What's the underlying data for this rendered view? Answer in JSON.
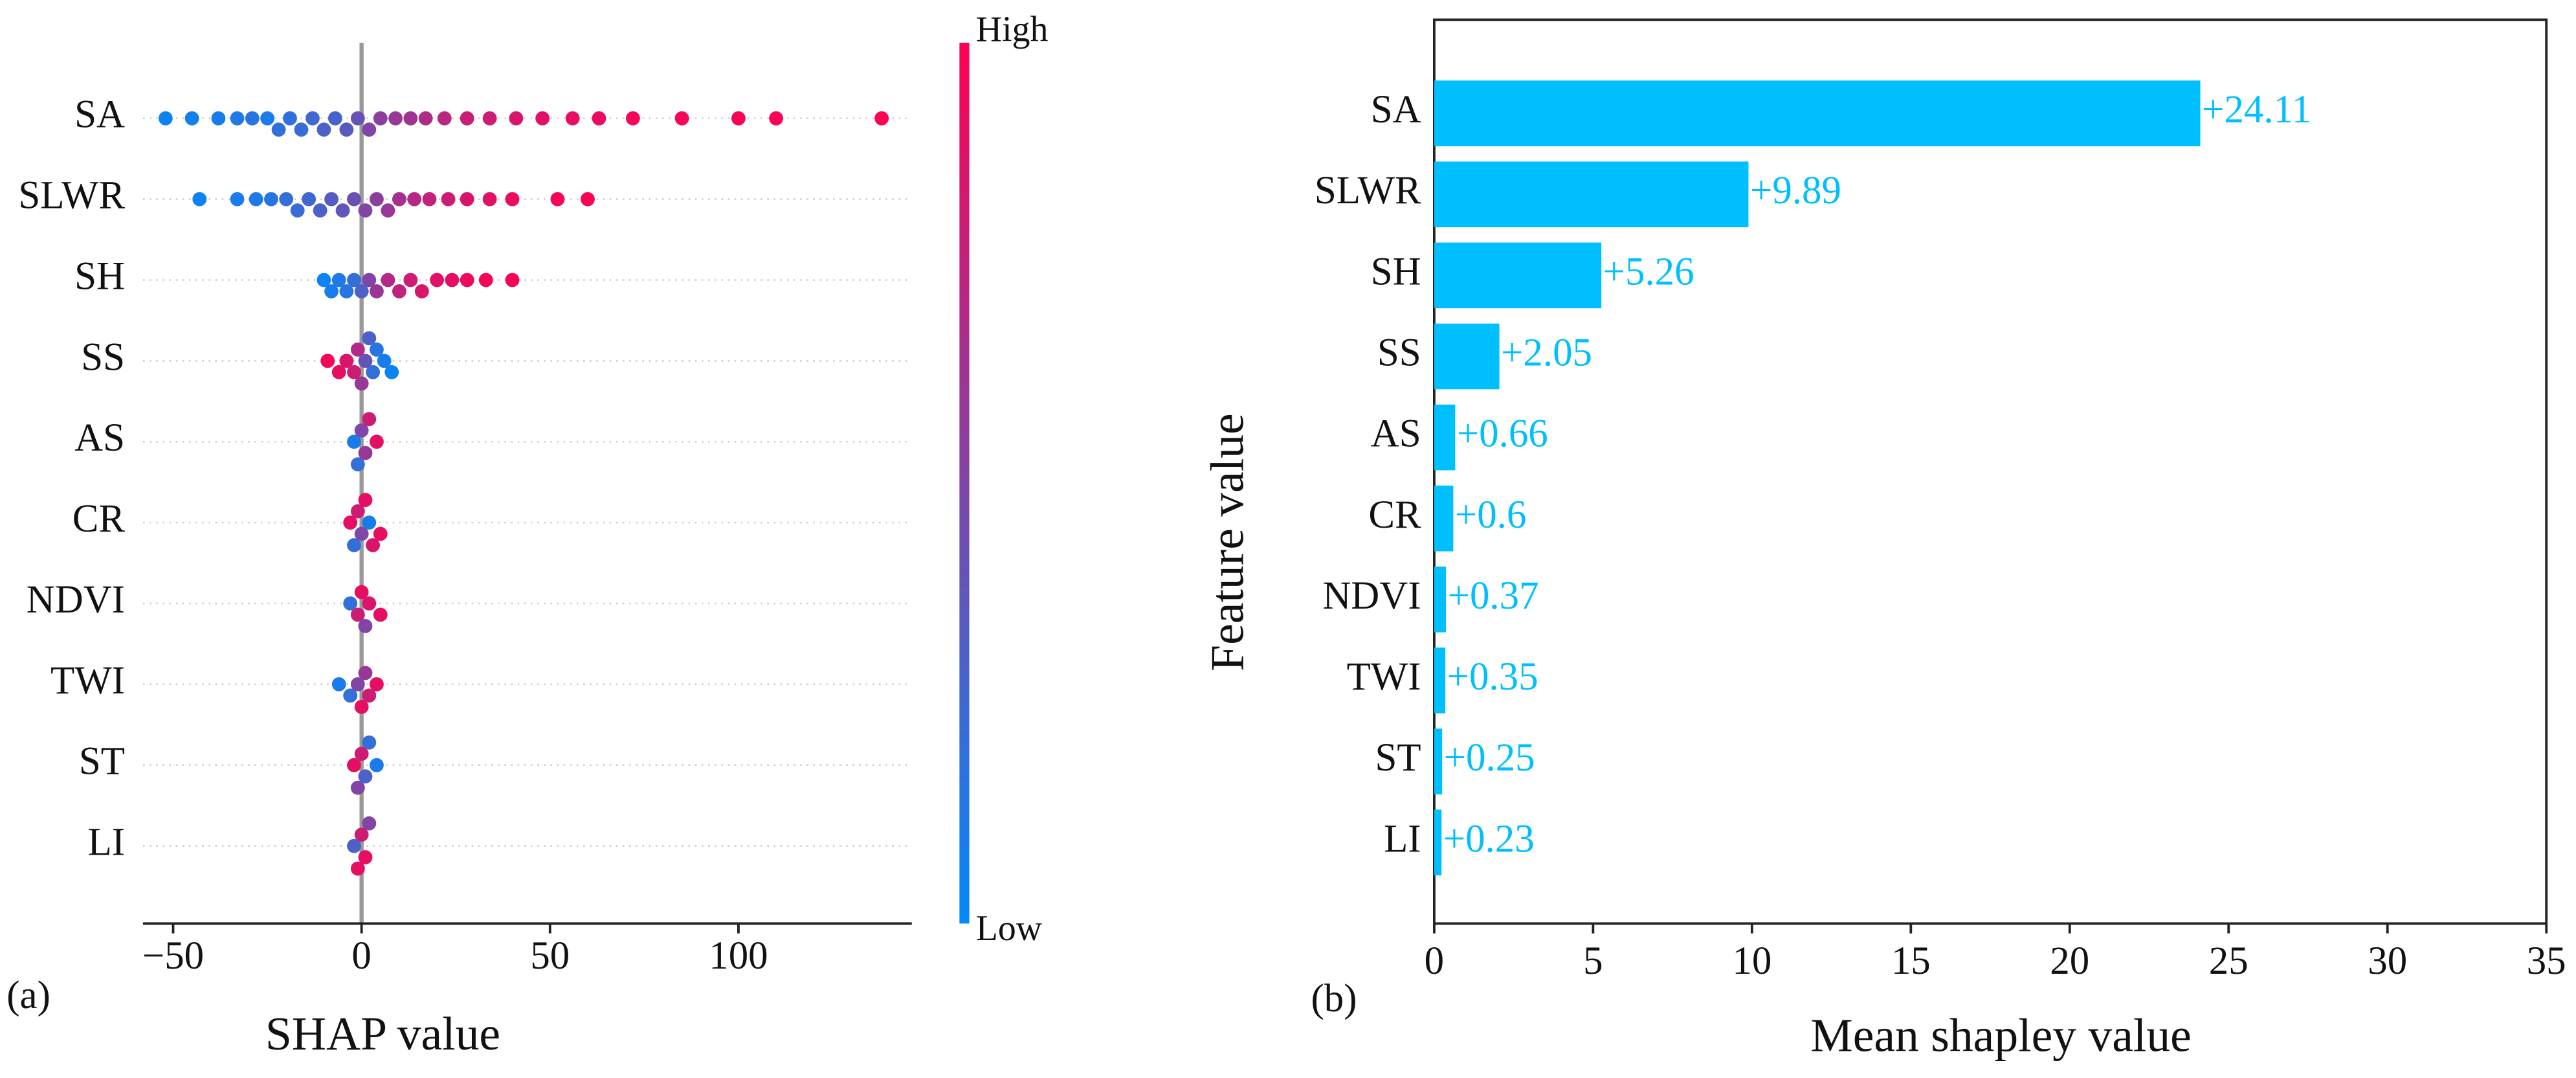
{
  "chart_data": [
    {
      "type": "beeswarm",
      "panel_label": "(a)",
      "xlabel": "SHAP value",
      "categories": [
        "SA",
        "SLWR",
        "SH",
        "SS",
        "AS",
        "CR",
        "NDVI",
        "TWI",
        "ST",
        "LI"
      ],
      "values": [
        [
          -52,
          -45,
          -38,
          -33,
          -29,
          -25,
          -22,
          -19,
          -16,
          -13,
          -10,
          -7,
          -4,
          -1,
          2,
          5,
          9,
          13,
          17,
          22,
          28,
          34,
          41,
          48,
          56,
          63,
          72,
          85,
          100,
          110,
          138
        ],
        [
          -43,
          -33,
          -28,
          -24,
          -20,
          -17,
          -14,
          -11,
          -8,
          -5,
          -2,
          1,
          4,
          7,
          10,
          14,
          18,
          23,
          28,
          34,
          40,
          52,
          60
        ],
        [
          -10,
          -8,
          -6,
          -4,
          -2,
          0,
          2,
          4,
          7,
          10,
          13,
          16,
          20,
          24,
          28,
          33,
          40
        ],
        [
          -9,
          -6,
          -4,
          -2,
          -1,
          0,
          1,
          2,
          3,
          4,
          6,
          8
        ],
        [
          -2,
          -1,
          0,
          1,
          2,
          4
        ],
        [
          -3,
          -2,
          -1,
          0,
          1,
          2,
          3,
          5
        ],
        [
          -3,
          -1,
          0,
          1,
          2,
          5
        ],
        [
          -6,
          -3,
          -1,
          0,
          1,
          2,
          4
        ],
        [
          -2,
          -1,
          0,
          1,
          2,
          4
        ],
        [
          -2,
          -1,
          0,
          1,
          2
        ]
      ],
      "feature_values": [
        [
          0.05,
          0.08,
          0.1,
          0.12,
          0.15,
          0.1,
          0.2,
          0.18,
          0.22,
          0.25,
          0.3,
          0.28,
          0.35,
          0.4,
          0.5,
          0.55,
          0.6,
          0.62,
          0.68,
          0.72,
          0.78,
          0.8,
          0.85,
          0.88,
          0.9,
          0.92,
          0.95,
          0.96,
          0.97,
          0.98,
          1
        ],
        [
          0.05,
          0.1,
          0.12,
          0.15,
          0.2,
          0.22,
          0.25,
          0.3,
          0.33,
          0.38,
          0.42,
          0.5,
          0.55,
          0.6,
          0.65,
          0.7,
          0.75,
          0.8,
          0.85,
          0.88,
          0.92,
          0.96,
          0.98
        ],
        [
          0.05,
          0.1,
          0.12,
          0.15,
          0.2,
          0.3,
          0.5,
          0.6,
          0.7,
          0.75,
          0.8,
          0.85,
          0.88,
          0.9,
          0.93,
          0.96,
          0.98
        ],
        [
          0.95,
          0.9,
          0.85,
          0.8,
          0.7,
          0.6,
          0.4,
          0.3,
          0.2,
          0.15,
          0.1,
          0.05
        ],
        [
          0.1,
          0.2,
          0.5,
          0.6,
          0.8,
          0.9
        ],
        [
          0.9,
          0.2,
          0.8,
          0.5,
          0.9,
          0.1,
          0.85,
          0.9
        ],
        [
          0.2,
          0.8,
          0.9,
          0.5,
          0.85,
          0.9
        ],
        [
          0.1,
          0.2,
          0.5,
          0.9,
          0.6,
          0.8,
          0.9
        ],
        [
          0.9,
          0.5,
          0.8,
          0.3,
          0.2,
          0.1
        ],
        [
          0.3,
          0.9,
          0.8,
          0.9,
          0.5
        ]
      ],
      "xlim": [
        -58,
        146
      ],
      "xticks": [
        {
          "value": -50,
          "label": "−50"
        },
        0,
        50,
        100
      ],
      "colorbar": {
        "high": "High",
        "low": "Low",
        "low_color": "#008afb",
        "high_color": "#ff0052"
      }
    },
    {
      "type": "hbar",
      "panel_label": "(b)",
      "xlabel": "Mean shapley value",
      "ylabel": "Feature value",
      "categories": [
        "SA",
        "SLWR",
        "SH",
        "SS",
        "AS",
        "CR",
        "NDVI",
        "TWI",
        "ST",
        "LI"
      ],
      "values": [
        24.11,
        9.89,
        5.26,
        2.05,
        0.66,
        0.6,
        0.37,
        0.35,
        0.25,
        0.23
      ],
      "value_labels": [
        "+24.11",
        "+9.89",
        "+5.26",
        "+2.05",
        "+0.66",
        "+0.6",
        "+0.37",
        "+0.35",
        "+0.25",
        "+0.23"
      ],
      "color": "#00bfff",
      "xlim": [
        0,
        35
      ],
      "xticks": [
        0,
        5,
        10,
        15,
        20,
        25,
        30,
        35
      ]
    }
  ]
}
